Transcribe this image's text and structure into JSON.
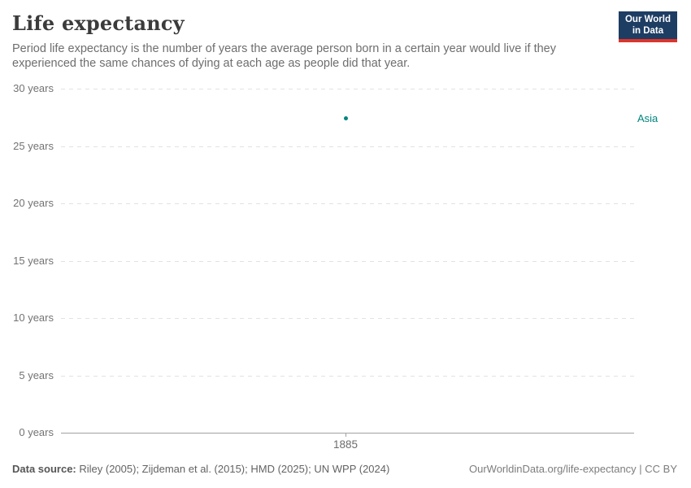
{
  "header": {
    "title": "Life expectancy",
    "subtitle": "Period life expectancy is the number of years the average person born in a certain year would live if they experienced the same chances of dying at each age as people did that year."
  },
  "logo": {
    "line1": "Our World",
    "line2": "in Data",
    "bg_color": "#1d3d63",
    "accent_color": "#dc352c"
  },
  "chart_data": {
    "type": "scatter",
    "title": "Life expectancy",
    "xlabel": "",
    "ylabel": "",
    "x_ticks": [
      "1885"
    ],
    "y_ticks": [
      0,
      5,
      10,
      15,
      20,
      25,
      30
    ],
    "y_tick_suffix": " years",
    "ylim": [
      0,
      30
    ],
    "grid": true,
    "legend_position": "right",
    "series": [
      {
        "name": "Asia",
        "color": "#00847e",
        "x": [
          1885
        ],
        "values": [
          27.4
        ]
      }
    ]
  },
  "footer": {
    "source_label": "Data source:",
    "source_text": " Riley (2005); Zijdeman et al. (2015); HMD (2025); UN WPP (2024)",
    "credit": "OurWorldinData.org/life-expectancy | CC BY"
  }
}
